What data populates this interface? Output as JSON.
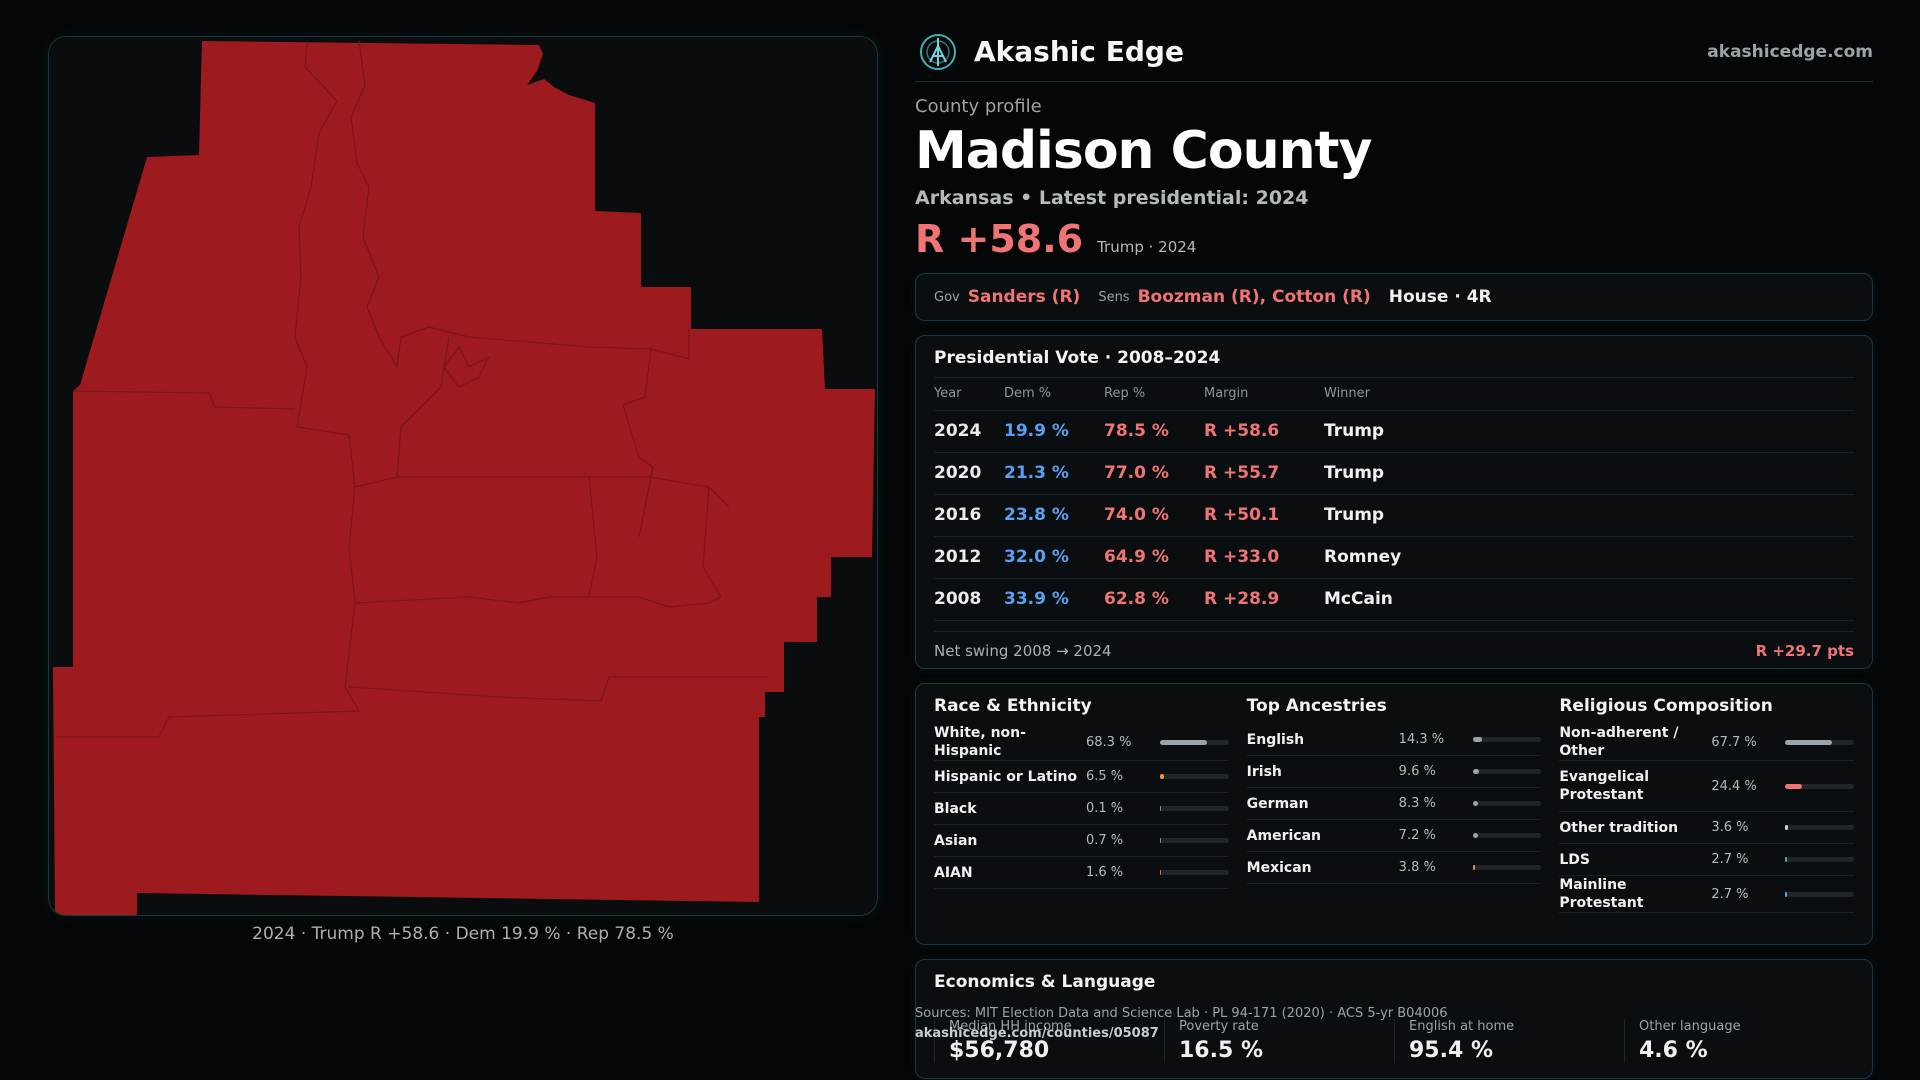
{
  "brand": {
    "name": "Akashic Edge",
    "url": "akashicedge.com"
  },
  "profile": {
    "kicker": "County profile",
    "county": "Madison County",
    "subline": "Arkansas • Latest presidential: 2024",
    "margin": "R +58.6",
    "margin_note": "Trump · 2024"
  },
  "map": {
    "caption": "2024 · Trump R +58.6 · Dem 19.9 % · Rep 78.5 %",
    "fill_color": "#9d1b1f"
  },
  "officials": {
    "gov_label": "Gov",
    "gov": "Sanders (R)",
    "sens_label": "Sens",
    "sens": "Boozman (R), Cotton (R)",
    "house": "House · 4R"
  },
  "presidential": {
    "title": "Presidential Vote · 2008–2024",
    "headers": [
      "Year",
      "Dem %",
      "Rep %",
      "Margin",
      "Winner"
    ],
    "rows": [
      {
        "year": "2024",
        "dem": "19.9 %",
        "rep": "78.5 %",
        "margin": "R +58.6",
        "winner": "Trump"
      },
      {
        "year": "2020",
        "dem": "21.3 %",
        "rep": "77.0 %",
        "margin": "R +55.7",
        "winner": "Trump"
      },
      {
        "year": "2016",
        "dem": "23.8 %",
        "rep": "74.0 %",
        "margin": "R +50.1",
        "winner": "Trump"
      },
      {
        "year": "2012",
        "dem": "32.0 %",
        "rep": "64.9 %",
        "margin": "R +33.0",
        "winner": "Romney"
      },
      {
        "year": "2008",
        "dem": "33.9 %",
        "rep": "62.8 %",
        "margin": "R +28.9",
        "winner": "McCain"
      }
    ],
    "swing_label": "Net swing 2008 → 2024",
    "swing_value": "R +29.7 pts"
  },
  "race": {
    "title": "Race & Ethnicity",
    "items": [
      {
        "name": "White, non-Hispanic",
        "pct": "68.3 %",
        "level": 0.683,
        "color": "#9aa3ab"
      },
      {
        "name": "Hispanic or Latino",
        "pct": "6.5 %",
        "level": 0.065,
        "color": "#e59b2f"
      },
      {
        "name": "Black",
        "pct": "0.1 %",
        "level": 0.001,
        "color": "#8a8f93"
      },
      {
        "name": "Asian",
        "pct": "0.7 %",
        "level": 0.007,
        "color": "#8a8f93"
      },
      {
        "name": "AIAN",
        "pct": "1.6 %",
        "level": 0.016,
        "color": "#e0733a"
      }
    ]
  },
  "ancestry": {
    "title": "Top Ancestries",
    "items": [
      {
        "name": "English",
        "pct": "14.3 %",
        "level": 0.143,
        "color": "#9aa3ab"
      },
      {
        "name": "Irish",
        "pct": "9.6 %",
        "level": 0.096,
        "color": "#9aa3ab"
      },
      {
        "name": "German",
        "pct": "8.3 %",
        "level": 0.083,
        "color": "#9aa3ab"
      },
      {
        "name": "American",
        "pct": "7.2 %",
        "level": 0.072,
        "color": "#9aa3ab"
      },
      {
        "name": "Mexican",
        "pct": "3.8 %",
        "level": 0.038,
        "color": "#e59b2f"
      }
    ]
  },
  "religion": {
    "title": "Religious Composition",
    "items": [
      {
        "name": "Non-adherent / Other",
        "pct": "67.7 %",
        "level": 0.677,
        "color": "#9aa3ab"
      },
      {
        "name": "Evangelical Protestant",
        "pct": "24.4 %",
        "level": 0.244,
        "color": "#f07474"
      },
      {
        "name": "Other tradition",
        "pct": "3.6 %",
        "level": 0.036,
        "color": "#c8ced2"
      },
      {
        "name": "LDS",
        "pct": "2.7 %",
        "level": 0.027,
        "color": "#3fb0a8"
      },
      {
        "name": "Mainline Protestant",
        "pct": "2.7 %",
        "level": 0.027,
        "color": "#5aa0f0"
      }
    ]
  },
  "economics": {
    "title": "Economics & Language",
    "metrics": [
      {
        "label": "Median HH income",
        "value": "$56,780"
      },
      {
        "label": "Poverty rate",
        "value": "16.5 %"
      },
      {
        "label": "English at home",
        "value": "95.4 %"
      },
      {
        "label": "Other language",
        "value": "4.6 %"
      }
    ]
  },
  "footer": {
    "sources": "Sources: MIT Election Data and Science Lab · PL 94-171 (2020) · ACS 5-yr B04006",
    "url": "akashicedge.com/counties/05087"
  }
}
